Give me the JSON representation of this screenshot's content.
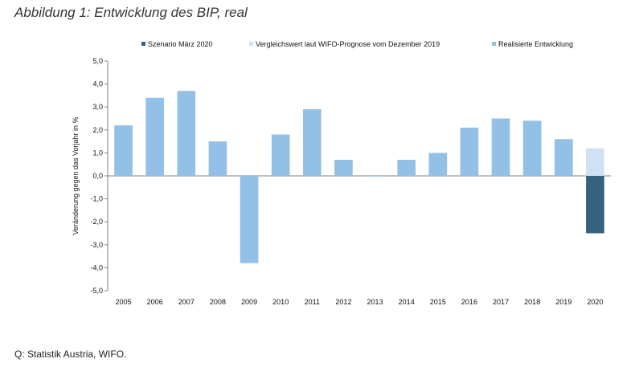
{
  "figure_title": "Abbildung 1: Entwicklung des BIP, real",
  "source": "Q: Statistik Austria, WIFO.",
  "chart_data": {
    "type": "bar",
    "title": "",
    "ylabel": "Veränderung gegen das Vorjahr in %",
    "xlabel": "",
    "ylim": [
      -5,
      5
    ],
    "yticks": [
      "5,0",
      "4,0",
      "3,0",
      "2,0",
      "1,0",
      "0,0",
      "-1,0",
      "-2,0",
      "-3,0",
      "-4,0",
      "-5,0"
    ],
    "categories": [
      "2005",
      "2006",
      "2007",
      "2008",
      "2009",
      "2010",
      "2011",
      "2012",
      "2013",
      "2014",
      "2015",
      "2016",
      "2017",
      "2018",
      "2019",
      "2020"
    ],
    "legend_position": "top",
    "series": [
      {
        "name": "Szenario März 2020",
        "color": "#36617f",
        "values": [
          null,
          null,
          null,
          null,
          null,
          null,
          null,
          null,
          null,
          null,
          null,
          null,
          null,
          null,
          null,
          -2.5
        ]
      },
      {
        "name": "Vergleichswert laut WIFO-Prognose vom Dezember 2019",
        "color": "#cfe2f3",
        "values": [
          null,
          null,
          null,
          null,
          null,
          null,
          null,
          null,
          null,
          null,
          null,
          null,
          null,
          null,
          null,
          1.2
        ]
      },
      {
        "name": "Realisierte Entwicklung",
        "color": "#93c0e6",
        "values": [
          2.2,
          3.4,
          3.7,
          1.5,
          -3.8,
          1.8,
          2.9,
          0.7,
          0.0,
          0.7,
          1.0,
          2.1,
          2.5,
          2.4,
          1.6,
          null
        ]
      }
    ]
  }
}
